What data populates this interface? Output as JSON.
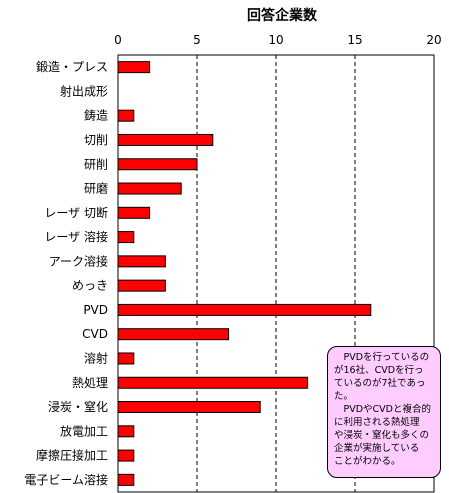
{
  "chart_data": {
    "type": "bar",
    "orientation": "horizontal",
    "title": "回答企業数",
    "categories": [
      "鍛造・プレス",
      "射出成形",
      "鋳造",
      "切削",
      "研削",
      "研磨",
      "レーザ 切断",
      "レーザ 溶接",
      "アーク溶接",
      "めっき",
      "PVD",
      "CVD",
      "溶射",
      "熱処理",
      "浸炭・窒化",
      "放電加工",
      "摩擦圧接加工",
      "電子ビーム溶接"
    ],
    "values": [
      2,
      0,
      1,
      6,
      5,
      4,
      2,
      1,
      3,
      3,
      16,
      7,
      1,
      12,
      9,
      1,
      1,
      1
    ],
    "xlim": [
      0,
      20
    ],
    "xticks": [
      0,
      5,
      10,
      15,
      20
    ],
    "grid": "vertical dashed",
    "bar_color": "#ff0000"
  },
  "annotation": "　PVDを行っているの\nが16社、CVDを行っ\nているのが7社であっ\nた。\n　PVDやCVDと複合的\nに利用される熱処理\nや浸炭・窒化も多くの\n企業が実施している\nことがわかる。"
}
